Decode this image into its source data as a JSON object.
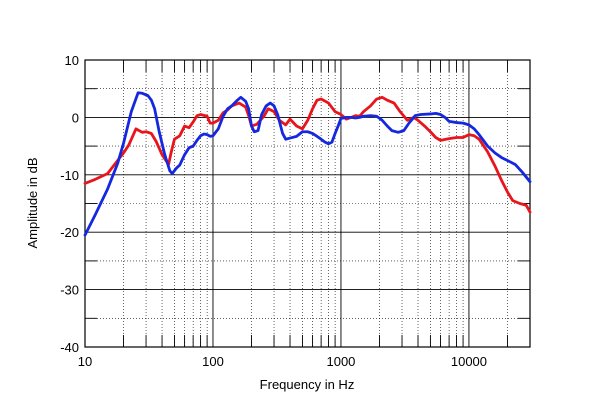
{
  "chart_data": {
    "type": "line",
    "title": "",
    "xlabel": "Frequency in Hz",
    "ylabel": "Amplitude in dB",
    "xscale": "log",
    "xlim": [
      10,
      30000
    ],
    "ylim": [
      -40,
      10
    ],
    "grid": true,
    "x_ticks": [
      {
        "value": 10,
        "label": "10"
      },
      {
        "value": 100,
        "label": "100"
      },
      {
        "value": 1000,
        "label": "1000"
      },
      {
        "value": 10000,
        "label": "10000"
      }
    ],
    "y_ticks": [
      {
        "value": 10,
        "label": "10"
      },
      {
        "value": 0,
        "label": "0"
      },
      {
        "value": -10,
        "label": "-10"
      },
      {
        "value": -20,
        "label": "-20"
      },
      {
        "value": -30,
        "label": "-30"
      },
      {
        "value": -40,
        "label": "-40"
      }
    ],
    "series": [
      {
        "color": "#e8151b",
        "points": [
          [
            10,
            -11.5
          ],
          [
            12,
            -10.8
          ],
          [
            15,
            -9.8
          ],
          [
            18,
            -7.5
          ],
          [
            20,
            -6.2
          ],
          [
            22,
            -4.8
          ],
          [
            25,
            -2.0
          ],
          [
            28,
            -2.6
          ],
          [
            30,
            -2.5
          ],
          [
            33,
            -2.8
          ],
          [
            36,
            -4.2
          ],
          [
            40,
            -6.5
          ],
          [
            45,
            -8.2
          ],
          [
            47,
            -6.2
          ],
          [
            50,
            -3.8
          ],
          [
            55,
            -3.2
          ],
          [
            60,
            -1.5
          ],
          [
            65,
            -1.8
          ],
          [
            70,
            -0.8
          ],
          [
            75,
            0.3
          ],
          [
            80,
            0.5
          ],
          [
            90,
            0.2
          ],
          [
            95,
            -1.0
          ],
          [
            100,
            -1.0
          ],
          [
            110,
            -0.5
          ],
          [
            120,
            0.8
          ],
          [
            130,
            1.3
          ],
          [
            140,
            2.0
          ],
          [
            160,
            2.5
          ],
          [
            180,
            1.8
          ],
          [
            190,
            0.3
          ],
          [
            200,
            -1.5
          ],
          [
            220,
            -1.2
          ],
          [
            250,
            0.2
          ],
          [
            270,
            1.5
          ],
          [
            300,
            1.0
          ],
          [
            330,
            -0.5
          ],
          [
            370,
            -1.3
          ],
          [
            400,
            -0.3
          ],
          [
            450,
            -1.5
          ],
          [
            500,
            -2.0
          ],
          [
            550,
            -0.5
          ],
          [
            600,
            1.5
          ],
          [
            650,
            3.0
          ],
          [
            700,
            3.2
          ],
          [
            800,
            2.5
          ],
          [
            900,
            1.0
          ],
          [
            1000,
            0.5
          ],
          [
            1100,
            -0.3
          ],
          [
            1200,
            0.0
          ],
          [
            1300,
            0.3
          ],
          [
            1400,
            0.2
          ],
          [
            1500,
            1.0
          ],
          [
            1700,
            2.0
          ],
          [
            1900,
            3.2
          ],
          [
            2100,
            3.5
          ],
          [
            2300,
            3.0
          ],
          [
            2600,
            2.5
          ],
          [
            2900,
            1.0
          ],
          [
            3300,
            -0.5
          ],
          [
            3700,
            0.0
          ],
          [
            4000,
            -0.5
          ],
          [
            4500,
            -1.5
          ],
          [
            5000,
            -2.5
          ],
          [
            5500,
            -3.5
          ],
          [
            6000,
            -4.0
          ],
          [
            7000,
            -3.7
          ],
          [
            8000,
            -3.5
          ],
          [
            9000,
            -3.5
          ],
          [
            10000,
            -3.0
          ],
          [
            11000,
            -3.2
          ],
          [
            12000,
            -3.8
          ],
          [
            14000,
            -6.0
          ],
          [
            16000,
            -8.5
          ],
          [
            18000,
            -11.0
          ],
          [
            20000,
            -13.0
          ],
          [
            22000,
            -14.5
          ],
          [
            25000,
            -15.0
          ],
          [
            28000,
            -15.3
          ],
          [
            30000,
            -16.5
          ]
        ]
      },
      {
        "color": "#1528e0",
        "points": [
          [
            10,
            -20.5
          ],
          [
            12,
            -17.0
          ],
          [
            15,
            -12.5
          ],
          [
            18,
            -8.0
          ],
          [
            20,
            -4.5
          ],
          [
            23,
            1.0
          ],
          [
            26,
            4.3
          ],
          [
            28,
            4.2
          ],
          [
            31,
            3.8
          ],
          [
            33,
            3.0
          ],
          [
            35,
            1.5
          ],
          [
            38,
            -2.5
          ],
          [
            42,
            -6.5
          ],
          [
            46,
            -9.3
          ],
          [
            48,
            -9.8
          ],
          [
            52,
            -8.8
          ],
          [
            55,
            -8.3
          ],
          [
            60,
            -6.5
          ],
          [
            65,
            -5.3
          ],
          [
            70,
            -5.0
          ],
          [
            75,
            -4.0
          ],
          [
            80,
            -3.2
          ],
          [
            85,
            -2.9
          ],
          [
            90,
            -3.0
          ],
          [
            95,
            -3.3
          ],
          [
            100,
            -3.2
          ],
          [
            110,
            -2.0
          ],
          [
            120,
            0.2
          ],
          [
            130,
            1.5
          ],
          [
            140,
            2.0
          ],
          [
            155,
            3.0
          ],
          [
            165,
            3.5
          ],
          [
            180,
            2.8
          ],
          [
            190,
            1.5
          ],
          [
            200,
            -1.5
          ],
          [
            210,
            -2.5
          ],
          [
            225,
            -2.3
          ],
          [
            240,
            0.5
          ],
          [
            260,
            2.0
          ],
          [
            280,
            2.5
          ],
          [
            300,
            2.0
          ],
          [
            320,
            0.5
          ],
          [
            350,
            -2.8
          ],
          [
            370,
            -3.8
          ],
          [
            400,
            -3.6
          ],
          [
            450,
            -3.3
          ],
          [
            500,
            -2.5
          ],
          [
            550,
            -2.5
          ],
          [
            600,
            -2.8
          ],
          [
            650,
            -3.3
          ],
          [
            700,
            -3.8
          ],
          [
            750,
            -4.3
          ],
          [
            800,
            -4.6
          ],
          [
            850,
            -4.3
          ],
          [
            900,
            -2.8
          ],
          [
            950,
            -1.5
          ],
          [
            1000,
            -0.2
          ],
          [
            1100,
            0.0
          ],
          [
            1200,
            0.0
          ],
          [
            1300,
            -0.1
          ],
          [
            1400,
            0.0
          ],
          [
            1500,
            0.2
          ],
          [
            1700,
            0.3
          ],
          [
            1900,
            0.2
          ],
          [
            2100,
            -0.5
          ],
          [
            2300,
            -1.5
          ],
          [
            2500,
            -2.3
          ],
          [
            2800,
            -2.6
          ],
          [
            3100,
            -2.3
          ],
          [
            3400,
            -1.0
          ],
          [
            3800,
            0.3
          ],
          [
            4200,
            0.5
          ],
          [
            5000,
            0.6
          ],
          [
            5500,
            0.7
          ],
          [
            6000,
            0.5
          ],
          [
            6500,
            0.0
          ],
          [
            7000,
            -0.7
          ],
          [
            8000,
            -0.9
          ],
          [
            9000,
            -1.0
          ],
          [
            10000,
            -1.3
          ],
          [
            11000,
            -2.0
          ],
          [
            12000,
            -3.0
          ],
          [
            14000,
            -5.0
          ],
          [
            16000,
            -6.2
          ],
          [
            18000,
            -7.0
          ],
          [
            20000,
            -7.5
          ],
          [
            23000,
            -8.2
          ],
          [
            26000,
            -9.5
          ],
          [
            30000,
            -11.2
          ]
        ]
      }
    ]
  }
}
